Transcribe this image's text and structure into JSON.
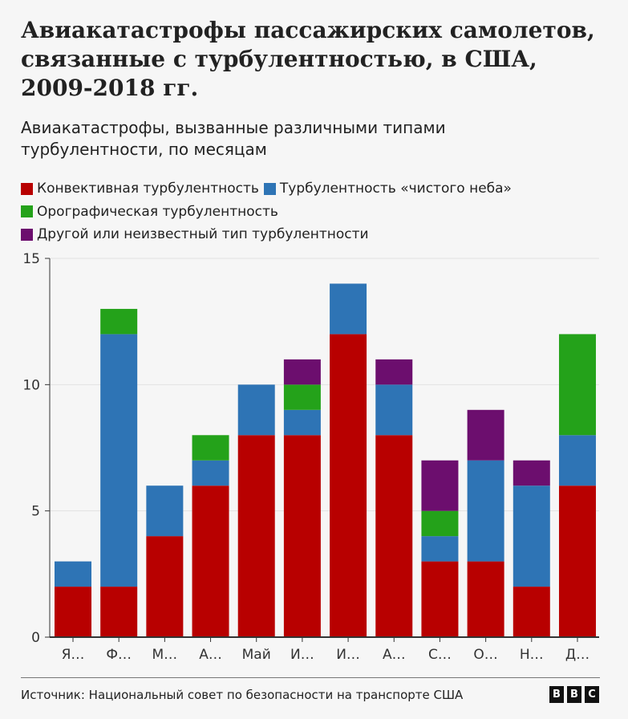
{
  "title": "Авиакатастрофы пассажирских самолетов, связанные с турбулентностью, в США, 2009-2018 гг.",
  "subtitle": "Авиакатастрофы, вызванные различными типами турбулентности, по месяцам",
  "source": "Источник: Национальный совет по безопасности на транспорте США",
  "logo": [
    "B",
    "B",
    "C"
  ],
  "chart_data": {
    "type": "bar",
    "stacked": true,
    "categories": [
      "Я…",
      "Ф…",
      "М…",
      "А…",
      "Май",
      "И…",
      "И…",
      "А…",
      "С…",
      "О…",
      "Н…",
      "Д…"
    ],
    "ylim": [
      0,
      15
    ],
    "yticks": [
      0,
      5,
      10,
      15
    ],
    "grid": true,
    "legend_position": "top-left",
    "series": [
      {
        "name": "Конвективная турбулентность",
        "color": "#b80000",
        "values": [
          2,
          2,
          4,
          6,
          8,
          8,
          12,
          8,
          3,
          3,
          2,
          6
        ]
      },
      {
        "name": "Турбулентность «чистого неба»",
        "color": "#2e74b5",
        "values": [
          1,
          10,
          2,
          1,
          2,
          1,
          2,
          2,
          1,
          4,
          4,
          2
        ]
      },
      {
        "name": "Орографическая турбулентность",
        "color": "#24a21a",
        "values": [
          0,
          1,
          0,
          1,
          0,
          1,
          0,
          0,
          1,
          0,
          0,
          4
        ]
      },
      {
        "name": "Другой или неизвестный тип турбулентности",
        "color": "#6c0e6e",
        "values": [
          0,
          0,
          0,
          0,
          0,
          1,
          0,
          1,
          2,
          2,
          1,
          0
        ]
      }
    ]
  }
}
